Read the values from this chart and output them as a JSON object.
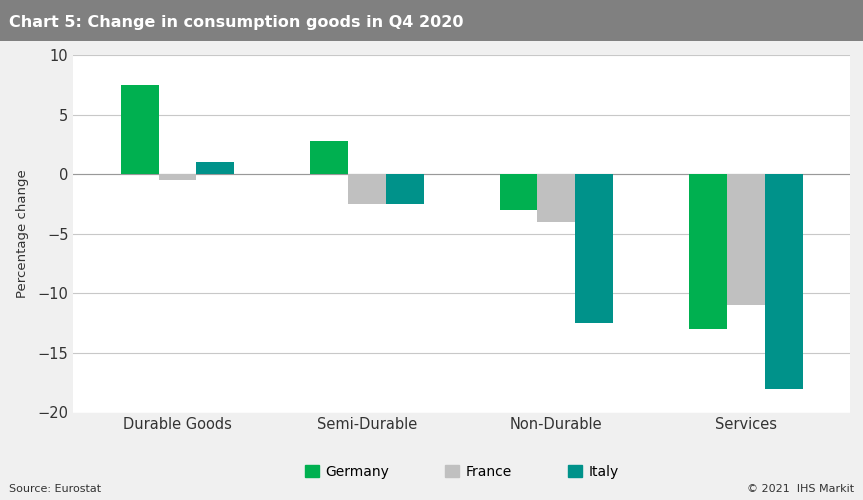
{
  "title": "Chart 5: Change in consumption goods in Q4 2020",
  "title_bg_color": "#808080",
  "title_text_color": "#ffffff",
  "ylabel": "Percentage change",
  "categories": [
    "Durable Goods",
    "Semi-Durable",
    "Non-Durable",
    "Services"
  ],
  "series": [
    {
      "label": "Germany",
      "color": "#00b050",
      "values": [
        7.5,
        2.8,
        -3.0,
        -13.0
      ]
    },
    {
      "label": "France",
      "color": "#c0c0c0",
      "values": [
        -0.5,
        -2.5,
        -4.0,
        -11.0
      ]
    },
    {
      "label": "Italy",
      "color": "#00928a",
      "values": [
        1.0,
        -2.5,
        -12.5,
        -18.0
      ]
    }
  ],
  "ylim": [
    -20,
    10
  ],
  "yticks": [
    -20,
    -15,
    -10,
    -5,
    0,
    5,
    10
  ],
  "background_color": "#f0f0f0",
  "plot_bg_color": "#ffffff",
  "grid_color": "#c8c8c8",
  "source_text": "Source: Eurostat",
  "copyright_text": "© 2021  IHS Markit",
  "bar_width": 0.2,
  "legend_marker_size": 10
}
